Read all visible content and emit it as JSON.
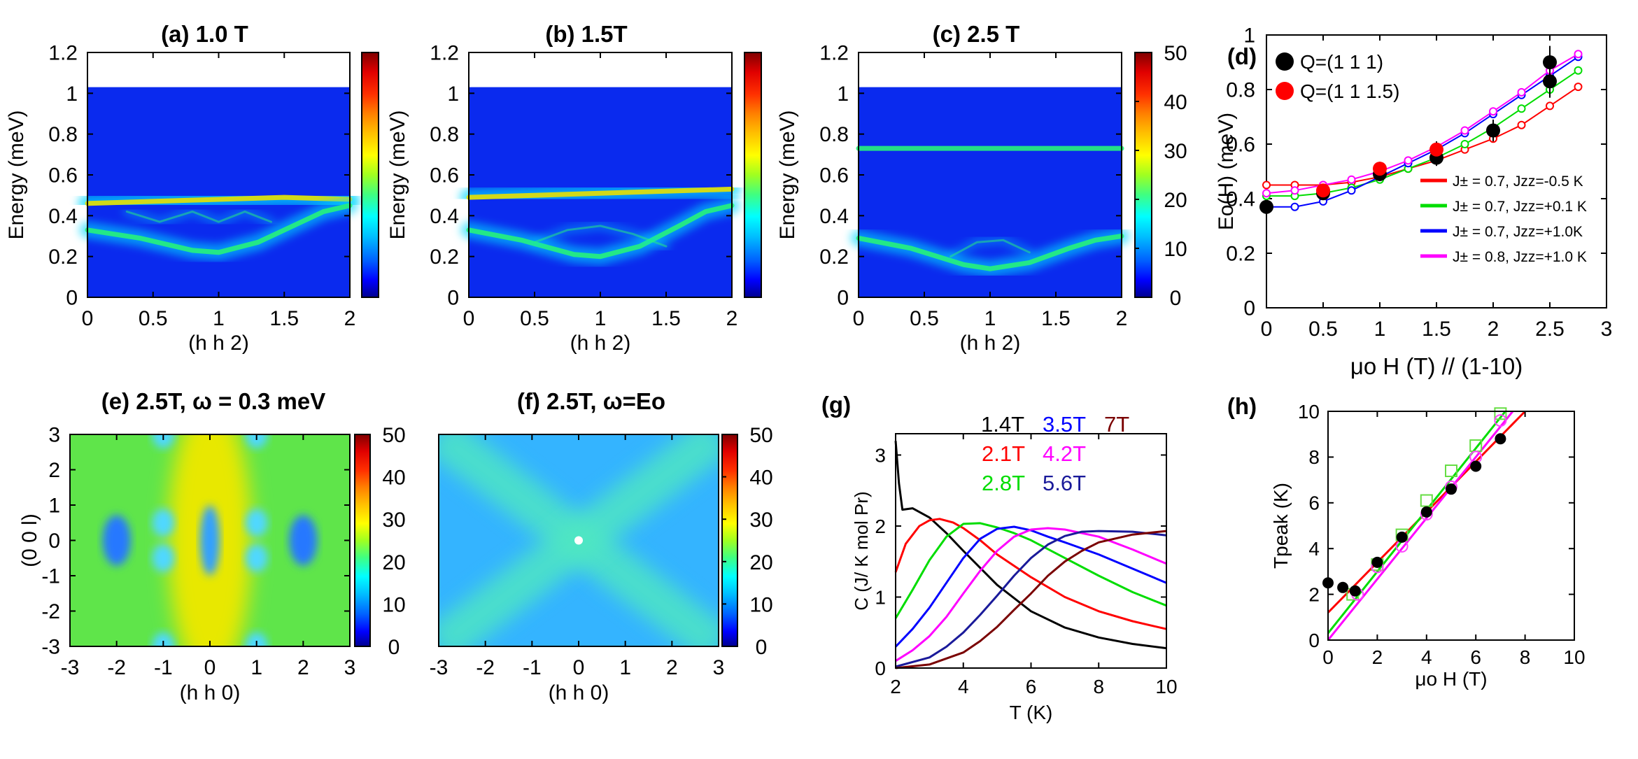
{
  "colors": {
    "colormap": [
      "#00008f",
      "#0000ff",
      "#0040ff",
      "#0080ff",
      "#00c0ff",
      "#00ffff",
      "#40ff80",
      "#80ff40",
      "#c0ff00",
      "#ffff00",
      "#ffc000",
      "#ff8000",
      "#ff4000",
      "#ff0000",
      "#c00000",
      "#800000"
    ],
    "heat_bg": "#0a2aee",
    "band": "#27f27a",
    "series": {
      "black": "#000000",
      "red": "#ff0000",
      "green": "#00dd00",
      "blue": "#0000ff",
      "magenta": "#ff00ff",
      "dblue": "#1a1a9a",
      "darkred": "#7a0000"
    }
  },
  "chart_data": [
    {
      "id": "a",
      "type": "heatmap",
      "title": "(a)   1.0 T",
      "xlabel": "(h h 2)",
      "ylabel": "Energy (meV)",
      "xlim": [
        0,
        2
      ],
      "ylim": [
        0,
        1.2
      ],
      "xticks": [
        "0",
        "0.5",
        "1",
        "1.5",
        "2"
      ],
      "yticks": [
        "0",
        "0.2",
        "0.4",
        "0.6",
        "0.8",
        "1",
        "1.2"
      ],
      "data_max_energy": 1.03,
      "colorbar": {
        "range": [
          0,
          50
        ],
        "ticks": []
      },
      "bands": [
        {
          "points": [
            [
              0,
              0.46
            ],
            [
              0.5,
              0.47
            ],
            [
              1,
              0.48
            ],
            [
              1.5,
              0.49
            ],
            [
              2,
              0.48
            ]
          ],
          "intensity": 0.9
        },
        {
          "points": [
            [
              0,
              0.33
            ],
            [
              0.4,
              0.29
            ],
            [
              0.8,
              0.23
            ],
            [
              1.0,
              0.22
            ],
            [
              1.3,
              0.27
            ],
            [
              1.6,
              0.36
            ],
            [
              1.8,
              0.42
            ],
            [
              2,
              0.45
            ]
          ],
          "intensity": 0.75
        },
        {
          "points": [
            [
              0.3,
              0.42
            ],
            [
              0.55,
              0.37
            ],
            [
              0.8,
              0.42
            ],
            [
              1.0,
              0.37
            ],
            [
              1.2,
              0.42
            ],
            [
              1.4,
              0.37
            ]
          ],
          "intensity": 0.3
        }
      ]
    },
    {
      "id": "b",
      "type": "heatmap",
      "title": "(b)     1.5T",
      "xlabel": "(h h 2)",
      "ylabel": "Energy (meV)",
      "xlim": [
        0,
        2
      ],
      "ylim": [
        0,
        1.2
      ],
      "xticks": [
        "0",
        "0.5",
        "1",
        "1.5",
        "2"
      ],
      "yticks": [
        "0",
        "0.2",
        "0.4",
        "0.6",
        "0.8",
        "1",
        "1.2"
      ],
      "data_max_energy": 1.03,
      "colorbar": {
        "range": [
          0,
          50
        ],
        "ticks": []
      },
      "bands": [
        {
          "points": [
            [
              0,
              0.49
            ],
            [
              0.5,
              0.5
            ],
            [
              1,
              0.51
            ],
            [
              1.5,
              0.52
            ],
            [
              2,
              0.53
            ]
          ],
          "intensity": 0.85
        },
        {
          "points": [
            [
              0,
              0.33
            ],
            [
              0.4,
              0.28
            ],
            [
              0.8,
              0.21
            ],
            [
              1.0,
              0.2
            ],
            [
              1.3,
              0.25
            ],
            [
              1.6,
              0.35
            ],
            [
              1.8,
              0.42
            ],
            [
              2,
              0.45
            ]
          ],
          "intensity": 0.75
        },
        {
          "points": [
            [
              0.5,
              0.27
            ],
            [
              0.75,
              0.33
            ],
            [
              1.0,
              0.35
            ],
            [
              1.25,
              0.31
            ],
            [
              1.5,
              0.25
            ]
          ],
          "intensity": 0.3
        }
      ]
    },
    {
      "id": "c",
      "type": "heatmap",
      "title": "(c)     2.5 T",
      "xlabel": "(h h 2)",
      "ylabel": "Energy (meV)",
      "xlim": [
        0,
        2
      ],
      "ylim": [
        0,
        1.2
      ],
      "xticks": [
        "0",
        "0.5",
        "1",
        "1.5",
        "2"
      ],
      "yticks": [
        "0",
        "0.2",
        "0.4",
        "0.6",
        "0.8",
        "1",
        "1.2"
      ],
      "data_max_energy": 1.03,
      "colorbar": {
        "range": [
          0,
          50
        ],
        "ticks": [
          "0",
          "10",
          "20",
          "30",
          "40",
          "50"
        ]
      },
      "bands": [
        {
          "points": [
            [
              0,
              0.73
            ],
            [
              1,
              0.73
            ],
            [
              2,
              0.73
            ]
          ],
          "intensity": 0.6
        },
        {
          "points": [
            [
              0,
              0.29
            ],
            [
              0.4,
              0.24
            ],
            [
              0.8,
              0.16
            ],
            [
              1.0,
              0.14
            ],
            [
              1.3,
              0.17
            ],
            [
              1.6,
              0.24
            ],
            [
              1.8,
              0.28
            ],
            [
              2,
              0.3
            ]
          ],
          "intensity": 0.75
        },
        {
          "points": [
            [
              0.7,
              0.2
            ],
            [
              0.9,
              0.27
            ],
            [
              1.1,
              0.28
            ],
            [
              1.3,
              0.22
            ]
          ],
          "intensity": 0.3
        }
      ]
    },
    {
      "id": "d",
      "type": "scatter",
      "title": "(d)",
      "xlabel": "μo H (T) // (1-10)",
      "ylabel": "Eo(H)  (meV)",
      "xlim": [
        0,
        3
      ],
      "ylim": [
        0,
        1
      ],
      "xticks": [
        "0",
        "0.5",
        "1",
        "1.5",
        "2",
        "2.5",
        "3"
      ],
      "yticks": [
        "0",
        "0.2",
        "0.4",
        "0.6",
        "0.8",
        "1"
      ],
      "legend_points": [
        {
          "label": "Q=(1 1 1)",
          "color": "black"
        },
        {
          "label": "Q=(1 1 1.5)",
          "color": "red"
        }
      ],
      "legend_lines": [
        {
          "label": "J± = 0.7, Jzz=-0.5 K",
          "color": "red"
        },
        {
          "label": "J± = 0.7, Jzz=+0.1 K",
          "color": "green"
        },
        {
          "label": "J± = 0.7, Jzz=+1.0K",
          "color": "blue"
        },
        {
          "label": "J± = 0.8, Jzz=+1.0 K",
          "color": "magenta"
        }
      ],
      "points_q111": [
        [
          0,
          0.37,
          0.02
        ],
        [
          0.5,
          0.42,
          0.02
        ],
        [
          1,
          0.49,
          0.025
        ],
        [
          1.5,
          0.55,
          0.03
        ],
        [
          2,
          0.65,
          0.04
        ],
        [
          2.5,
          0.83,
          0.06
        ],
        [
          2.5,
          0.9,
          0.06
        ]
      ],
      "points_q1115": [
        [
          0.5,
          0.43,
          0.02
        ],
        [
          1,
          0.51,
          0.025
        ],
        [
          1.5,
          0.58,
          0.03
        ]
      ],
      "series": [
        {
          "name": "J± = 0.7, Jzz=-0.5 K",
          "color": "red",
          "x": [
            0,
            0.25,
            0.5,
            0.75,
            1,
            1.25,
            1.5,
            1.75,
            2,
            2.25,
            2.5,
            2.75
          ],
          "y": [
            0.45,
            0.45,
            0.45,
            0.46,
            0.48,
            0.51,
            0.54,
            0.58,
            0.62,
            0.67,
            0.74,
            0.81
          ]
        },
        {
          "name": "J± = 0.7, Jzz=+0.1 K",
          "color": "green",
          "x": [
            0,
            0.25,
            0.5,
            0.75,
            1,
            1.25,
            1.5,
            1.75,
            2,
            2.25,
            2.5,
            2.75
          ],
          "y": [
            0.41,
            0.41,
            0.42,
            0.44,
            0.47,
            0.51,
            0.55,
            0.6,
            0.66,
            0.73,
            0.8,
            0.87
          ]
        },
        {
          "name": "J± = 0.7, Jzz=+1.0K",
          "color": "blue",
          "x": [
            0,
            0.25,
            0.5,
            0.75,
            1,
            1.25,
            1.5,
            1.75,
            2,
            2.25,
            2.5,
            2.75
          ],
          "y": [
            0.37,
            0.37,
            0.39,
            0.43,
            0.48,
            0.53,
            0.58,
            0.64,
            0.71,
            0.78,
            0.85,
            0.92
          ]
        },
        {
          "name": "J± = 0.8, Jzz=+1.0 K",
          "color": "magenta",
          "x": [
            0,
            0.25,
            0.5,
            0.75,
            1,
            1.25,
            1.5,
            1.75,
            2,
            2.25,
            2.5,
            2.75
          ],
          "y": [
            0.42,
            0.43,
            0.45,
            0.47,
            0.5,
            0.54,
            0.59,
            0.65,
            0.72,
            0.79,
            0.87,
            0.93
          ]
        }
      ]
    },
    {
      "id": "e",
      "type": "heatmap",
      "title": "(e)   2.5T, ω = 0.3 meV",
      "xlabel": "(h h 0)",
      "ylabel": "(0 0 l)",
      "xlim": [
        -3,
        3
      ],
      "ylim": [
        -3,
        3
      ],
      "xticks": [
        "-3",
        "-2",
        "-1",
        "0",
        "1",
        "2",
        "3"
      ],
      "yticks": [
        "-3",
        "-2",
        "-1",
        "0",
        "1",
        "2",
        "3"
      ],
      "colorbar": {
        "range": [
          0,
          50
        ],
        "ticks": []
      }
    },
    {
      "id": "f",
      "type": "heatmap",
      "title": "(f)   2.5T, ω=Eo",
      "xlabel": "(h h 0)",
      "ylabel": "",
      "xlim": [
        -3,
        3
      ],
      "ylim": [
        -3,
        3
      ],
      "xticks": [
        "-3",
        "-2",
        "-1",
        "0",
        "1",
        "2",
        "3"
      ],
      "yticks": [],
      "left_scale_ticks": [
        "0",
        "10",
        "20",
        "30",
        "40",
        "50"
      ],
      "colorbar": {
        "range": [
          0,
          50
        ],
        "ticks": [
          "0",
          "10",
          "20",
          "30",
          "40",
          "50"
        ]
      }
    },
    {
      "id": "g",
      "type": "line",
      "title": "(g)",
      "xlabel": "T (K)",
      "ylabel": "C (J/ K mol Pr)",
      "xlim": [
        2,
        10
      ],
      "ylim": [
        0,
        3.3
      ],
      "xticks": [
        "2",
        "4",
        "6",
        "8",
        "10"
      ],
      "yticks": [
        "0",
        "1",
        "2",
        "3"
      ],
      "series": [
        {
          "name": "1.4T",
          "color": "black",
          "x": [
            2,
            2.1,
            2.2,
            2.5,
            3,
            3.5,
            4,
            5,
            6,
            7,
            8,
            9,
            10
          ],
          "y": [
            3.2,
            2.6,
            2.23,
            2.25,
            2.12,
            1.9,
            1.65,
            1.17,
            0.8,
            0.57,
            0.43,
            0.34,
            0.28
          ]
        },
        {
          "name": "2.1T",
          "color": "red",
          "x": [
            2,
            2.3,
            2.7,
            3,
            3.3,
            3.7,
            4,
            4.5,
            5,
            6,
            7,
            8,
            9,
            10
          ],
          "y": [
            1.35,
            1.75,
            2.0,
            2.08,
            2.1,
            2.05,
            1.97,
            1.8,
            1.6,
            1.28,
            1.0,
            0.8,
            0.66,
            0.55
          ]
        },
        {
          "name": "2.8T",
          "color": "green",
          "x": [
            2,
            2.5,
            3,
            3.5,
            4,
            4.5,
            5,
            5.5,
            6,
            7,
            8,
            9,
            10
          ],
          "y": [
            0.7,
            1.1,
            1.52,
            1.85,
            2.03,
            2.04,
            1.98,
            1.9,
            1.8,
            1.55,
            1.3,
            1.07,
            0.88
          ]
        },
        {
          "name": "3.5T",
          "color": "blue",
          "x": [
            2,
            2.5,
            3,
            3.5,
            4,
            4.5,
            5,
            5.5,
            6,
            6.5,
            7,
            8,
            9,
            10
          ],
          "y": [
            0.3,
            0.55,
            0.85,
            1.2,
            1.55,
            1.82,
            1.96,
            1.99,
            1.94,
            1.85,
            1.77,
            1.6,
            1.4,
            1.2
          ]
        },
        {
          "name": "4.2T",
          "color": "magenta",
          "x": [
            2,
            2.5,
            3,
            3.5,
            4,
            4.5,
            5,
            5.5,
            6,
            6.5,
            7,
            8,
            9,
            10
          ],
          "y": [
            0.1,
            0.25,
            0.45,
            0.72,
            1.05,
            1.37,
            1.65,
            1.85,
            1.95,
            1.97,
            1.95,
            1.85,
            1.67,
            1.47
          ]
        },
        {
          "name": "5.6T",
          "color": "dblue",
          "x": [
            2,
            3,
            3.5,
            4,
            4.5,
            5,
            5.5,
            6,
            6.5,
            7,
            7.5,
            8,
            9,
            10
          ],
          "y": [
            0.02,
            0.15,
            0.3,
            0.5,
            0.75,
            1.02,
            1.3,
            1.55,
            1.74,
            1.86,
            1.92,
            1.93,
            1.92,
            1.87
          ]
        },
        {
          "name": "7T",
          "color": "darkred",
          "x": [
            2,
            3,
            4,
            4.5,
            5,
            5.5,
            6,
            6.5,
            7,
            7.5,
            8,
            9,
            10
          ],
          "y": [
            0,
            0.05,
            0.22,
            0.38,
            0.58,
            0.82,
            1.05,
            1.3,
            1.5,
            1.65,
            1.77,
            1.88,
            1.93
          ]
        }
      ]
    },
    {
      "id": "h",
      "type": "scatter",
      "title": "(h)",
      "xlabel": "μo H (T)",
      "ylabel": "Tpeak (K)",
      "xlim": [
        0,
        10
      ],
      "ylim": [
        0,
        10
      ],
      "xticks": [
        "0",
        "2",
        "4",
        "6",
        "8",
        "10"
      ],
      "yticks": [
        "0",
        "2",
        "4",
        "6",
        "8",
        "10"
      ],
      "points_black": [
        [
          0,
          2.5
        ],
        [
          0.6,
          2.3
        ],
        [
          1.1,
          2.15
        ],
        [
          2,
          3.4
        ],
        [
          3,
          4.5
        ],
        [
          4,
          5.6
        ],
        [
          5,
          6.6
        ],
        [
          6,
          7.6
        ],
        [
          7,
          8.8
        ]
      ],
      "points_green_squares": [
        [
          1,
          2.0
        ],
        [
          2,
          3.3
        ],
        [
          3,
          4.6
        ],
        [
          4,
          6.1
        ],
        [
          5,
          7.4
        ],
        [
          6,
          8.5
        ],
        [
          7,
          9.9
        ]
      ],
      "points_magenta_circles": [
        [
          1.2,
          2.0
        ],
        [
          2,
          3.2
        ],
        [
          3,
          4.1
        ],
        [
          4,
          5.5
        ],
        [
          5,
          6.7
        ],
        [
          6,
          8.0
        ],
        [
          7,
          9.6
        ]
      ],
      "lines": [
        {
          "color": "red",
          "x": [
            0,
            8
          ],
          "y": [
            1.2,
            10
          ]
        },
        {
          "color": "green",
          "x": [
            0,
            7.2
          ],
          "y": [
            0.3,
            10
          ]
        },
        {
          "color": "magenta",
          "x": [
            0,
            7.5
          ],
          "y": [
            -0.2,
            10
          ]
        }
      ]
    }
  ]
}
